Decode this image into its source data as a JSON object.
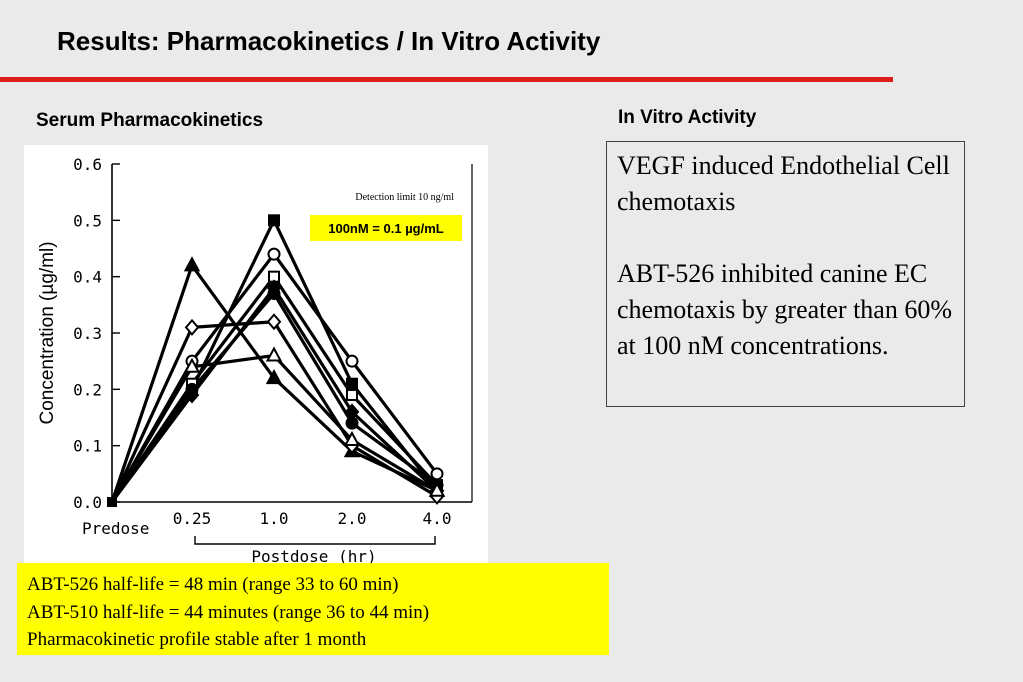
{
  "slide": {
    "title": "Results:  Pharmacokinetics / In Vitro Activity",
    "accent_color": "#dd1c1c",
    "left_heading": "Serum Pharmacokinetics",
    "right_heading": "In Vitro Activity"
  },
  "chart_data": {
    "type": "line",
    "ylabel": "Concentration (µg/ml)",
    "xlabel": "Postdose   (hr)",
    "x_extra_label": "Predose",
    "categories": [
      "Predose",
      "0.25",
      "1.0",
      "2.0",
      "4.0"
    ],
    "y_ticks": [
      "0.0",
      "0.1",
      "0.2",
      "0.3",
      "0.4",
      "0.5",
      "0.6"
    ],
    "ylim": [
      0,
      0.6
    ],
    "annotation_small": "Detection limit 10 ng/ml",
    "annotation_box": "100nM = 0.1 µg/mL",
    "annotation_box_color": "#ffff00",
    "series": [
      {
        "marker": "filled-triangle",
        "values": [
          0.0,
          0.42,
          0.22,
          0.09,
          0.02
        ]
      },
      {
        "marker": "filled-square",
        "values": [
          0.0,
          0.2,
          0.5,
          0.21,
          0.02
        ]
      },
      {
        "marker": "open-circle",
        "values": [
          0.0,
          0.25,
          0.44,
          0.25,
          0.05
        ]
      },
      {
        "marker": "open-square",
        "values": [
          0.0,
          0.21,
          0.4,
          0.19,
          0.03
        ]
      },
      {
        "marker": "filled-circle",
        "values": [
          0.0,
          0.2,
          0.37,
          0.14,
          0.03
        ]
      },
      {
        "marker": "filled-diamond",
        "values": [
          0.0,
          0.19,
          0.38,
          0.16,
          0.02
        ]
      },
      {
        "marker": "open-diamond",
        "values": [
          0.0,
          0.31,
          0.32,
          0.1,
          0.01
        ]
      },
      {
        "marker": "open-triangle",
        "values": [
          0.0,
          0.24,
          0.26,
          0.11,
          0.02
        ]
      }
    ]
  },
  "notes": [
    "ABT-526 half-life = 48 min (range 33 to 60 min)",
    "ABT-510 half-life = 44 minutes (range 36 to 44 min)",
    "Pharmacokinetic profile stable after 1 month"
  ],
  "notes_color": "#ffff00",
  "in_vitro": {
    "para1": "VEGF induced Endothelial Cell chemotaxis",
    "para2": "ABT-526 inhibited canine EC chemotaxis by greater than 60% at 100 nM concentrations."
  }
}
